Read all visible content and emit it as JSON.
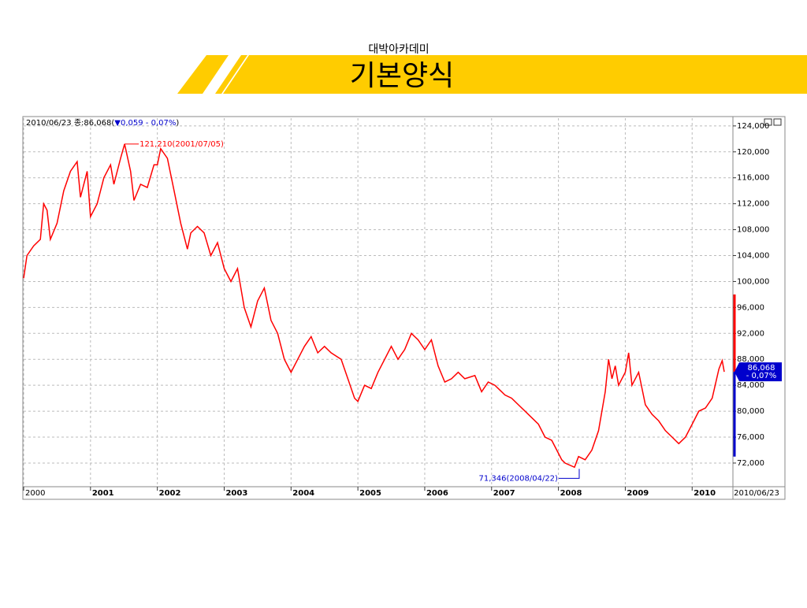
{
  "header": {
    "subtitle": "대박아카데미",
    "title": "기본양식"
  },
  "chart_data": {
    "type": "line",
    "info": {
      "prefix": "2010/06/23 종:86,068(",
      "change": "▼0,059  - 0,07%",
      "suffix": ")"
    },
    "color": "#ff0000",
    "x": [
      2000.0,
      2000.05,
      2000.15,
      2000.25,
      2000.3,
      2000.35,
      2000.4,
      2000.5,
      2000.6,
      2000.7,
      2000.8,
      2000.85,
      2000.95,
      2001.0,
      2001.1,
      2001.2,
      2001.3,
      2001.35,
      2001.45,
      2001.51,
      2001.6,
      2001.65,
      2001.75,
      2001.85,
      2001.95,
      2002.0,
      2002.05,
      2002.15,
      2002.25,
      2002.35,
      2002.45,
      2002.5,
      2002.6,
      2002.7,
      2002.8,
      2002.9,
      2003.0,
      2003.1,
      2003.2,
      2003.3,
      2003.4,
      2003.5,
      2003.6,
      2003.7,
      2003.8,
      2003.9,
      2004.0,
      2004.1,
      2004.2,
      2004.3,
      2004.4,
      2004.5,
      2004.6,
      2004.75,
      2004.85,
      2004.95,
      2005.0,
      2005.1,
      2005.2,
      2005.3,
      2005.4,
      2005.5,
      2005.6,
      2005.7,
      2005.8,
      2005.9,
      2006.0,
      2006.1,
      2006.2,
      2006.3,
      2006.4,
      2006.5,
      2006.6,
      2006.75,
      2006.85,
      2006.95,
      2007.05,
      2007.2,
      2007.3,
      2007.4,
      2007.5,
      2007.6,
      2007.7,
      2007.8,
      2007.9,
      2008.0,
      2008.05,
      2008.1,
      2008.24,
      2008.3,
      2008.4,
      2008.5,
      2008.6,
      2008.7,
      2008.75,
      2008.8,
      2008.85,
      2008.9,
      2009.0,
      2009.05,
      2009.1,
      2009.2,
      2009.3,
      2009.4,
      2009.5,
      2009.6,
      2009.7,
      2009.8,
      2009.9,
      2010.0,
      2010.1,
      2010.2,
      2010.3,
      2010.4,
      2010.45,
      2010.48
    ],
    "values": [
      100500,
      104000,
      105500,
      106500,
      112000,
      111000,
      106500,
      109000,
      114000,
      117000,
      118500,
      113000,
      117000,
      110000,
      112000,
      116000,
      118000,
      115000,
      119000,
      121210,
      117000,
      112500,
      115000,
      114500,
      118000,
      118000,
      120500,
      119000,
      114000,
      109000,
      105000,
      107500,
      108500,
      107500,
      104000,
      106000,
      102000,
      100000,
      102000,
      96000,
      93000,
      97000,
      99000,
      94000,
      92000,
      88000,
      86000,
      88000,
      90000,
      91500,
      89000,
      90000,
      89000,
      88000,
      85000,
      82000,
      81500,
      84000,
      83500,
      86000,
      88000,
      90000,
      88000,
      89500,
      92000,
      91000,
      89500,
      91000,
      87000,
      84500,
      85000,
      86000,
      85000,
      85500,
      83000,
      84500,
      84000,
      82500,
      82000,
      81000,
      80000,
      79000,
      78000,
      76000,
      75500,
      73500,
      72500,
      72000,
      71346,
      73000,
      72500,
      74000,
      77000,
      83000,
      88000,
      85000,
      87000,
      84000,
      86000,
      89000,
      84000,
      86000,
      81000,
      79500,
      78500,
      77000,
      76000,
      75000,
      76000,
      78000,
      80000,
      80500,
      82000,
      86500,
      87800,
      86068
    ],
    "max_label": "121,210(2001/07/05)",
    "min_label": "71,346(2008/04/22)",
    "last_value_label": "86,068",
    "last_change_label": "- 0,07%",
    "last_date": "2010/06/23",
    "xlim": [
      2000,
      2010.61
    ],
    "xticks": [
      2000,
      2001,
      2002,
      2003,
      2004,
      2005,
      2006,
      2007,
      2008,
      2009,
      2010
    ],
    "ylim": [
      68350,
      125200
    ],
    "yticks": [
      {
        "value": 72000,
        "label": "72,000"
      },
      {
        "value": 76000,
        "label": "76,000"
      },
      {
        "value": 80000,
        "label": "80,000"
      },
      {
        "value": 84000,
        "label": "84,000"
      },
      {
        "value": 88000,
        "label": "88,000"
      },
      {
        "value": 92000,
        "label": "92,000"
      },
      {
        "value": 96000,
        "label": "96,000"
      },
      {
        "value": 100000,
        "label": "100,000"
      },
      {
        "value": 104000,
        "label": "104,000"
      },
      {
        "value": 108000,
        "label": "108,000"
      },
      {
        "value": 112000,
        "label": "112,000"
      },
      {
        "value": 116000,
        "label": "116,000"
      },
      {
        "value": 120000,
        "label": "120,000"
      },
      {
        "value": 124000,
        "label": "124,000"
      }
    ],
    "grid": true
  }
}
